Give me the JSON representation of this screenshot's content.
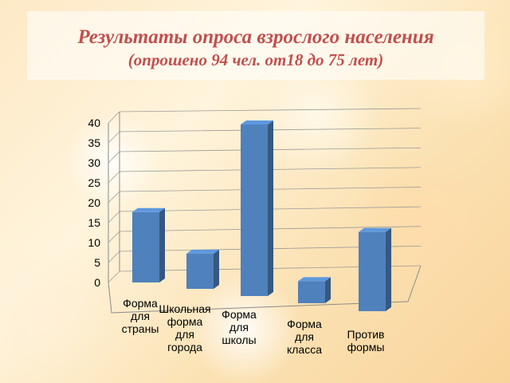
{
  "title": "Результаты опроса взрослого населения",
  "subtitle": "(опрошено 94 чел. от18 до 75 лет)",
  "chart_data": {
    "type": "bar",
    "bar_style": "3d",
    "categories": [
      [
        "Форма",
        "для",
        "страны"
      ],
      [
        "Школьная",
        "форма",
        "для",
        "города"
      ],
      [
        "Форма",
        "для",
        "школы"
      ],
      [
        "Форма",
        "для",
        "класса"
      ],
      [
        "Против",
        "формы"
      ]
    ],
    "values": [
      16,
      8,
      39,
      5,
      18
    ],
    "ylim": [
      0,
      40
    ],
    "yticks": [
      0,
      5,
      10,
      15,
      20,
      25,
      30,
      35,
      40
    ],
    "grid": true,
    "bar_color": "#4f81bd"
  }
}
